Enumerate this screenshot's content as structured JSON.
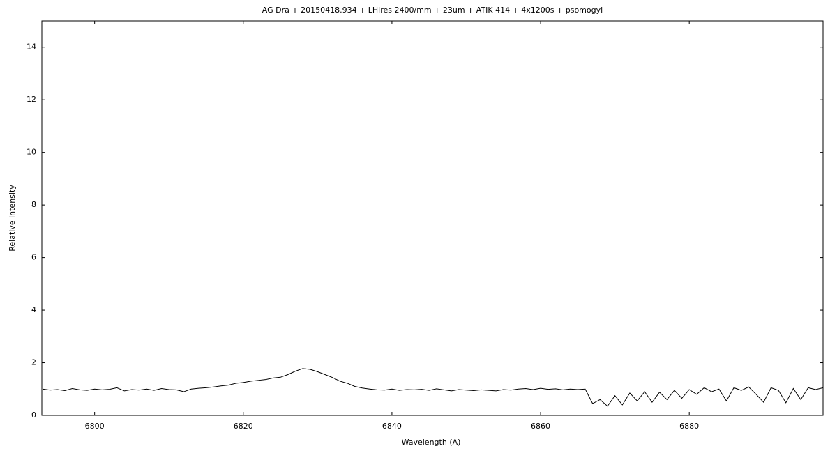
{
  "chart_data": {
    "type": "line",
    "title": "AG Dra + 20150418.934 + LHires 2400/mm + 23um + ATIK 414 + 4x1200s + psomogyi",
    "x_label": "Wavelength (A)",
    "y_label": "Relative intensity",
    "xlim": [
      6792.9,
      6898
    ],
    "ylim": [
      0,
      15
    ],
    "xticks": [
      6800,
      6820,
      6840,
      6860,
      6880
    ],
    "yticks": [
      0,
      2,
      4,
      6,
      8,
      10,
      12,
      14
    ],
    "x": [
      6793,
      6794,
      6795,
      6796,
      6797,
      6798,
      6799,
      6800,
      6801,
      6802,
      6803,
      6804,
      6805,
      6806,
      6807,
      6808,
      6809,
      6810,
      6811,
      6812,
      6813,
      6814,
      6815,
      6816,
      6817,
      6818,
      6819,
      6820,
      6821,
      6822,
      6823,
      6824,
      6825,
      6826,
      6827,
      6828,
      6829,
      6830,
      6831,
      6832,
      6833,
      6834,
      6835,
      6836,
      6837,
      6838,
      6839,
      6840,
      6841,
      6842,
      6843,
      6844,
      6845,
      6846,
      6847,
      6848,
      6849,
      6850,
      6851,
      6852,
      6853,
      6854,
      6855,
      6856,
      6857,
      6858,
      6859,
      6860,
      6861,
      6862,
      6863,
      6864,
      6865,
      6866,
      6867,
      6868,
      6869,
      6870,
      6871,
      6872,
      6873,
      6874,
      6875,
      6876,
      6877,
      6878,
      6879,
      6880,
      6881,
      6882,
      6883,
      6884,
      6885,
      6886,
      6887,
      6888,
      6889,
      6890,
      6891,
      6892,
      6893,
      6894,
      6895,
      6896,
      6897,
      6898
    ],
    "series": [
      {
        "color": "#000000",
        "values": [
          1.0,
          0.96,
          0.98,
          0.94,
          1.02,
          0.97,
          0.95,
          1.0,
          0.97,
          0.99,
          1.05,
          0.93,
          0.98,
          0.96,
          1.0,
          0.95,
          1.02,
          0.98,
          0.97,
          0.9,
          1.0,
          1.03,
          1.05,
          1.08,
          1.12,
          1.15,
          1.22,
          1.25,
          1.3,
          1.33,
          1.36,
          1.42,
          1.45,
          1.55,
          1.68,
          1.78,
          1.75,
          1.66,
          1.55,
          1.44,
          1.3,
          1.22,
          1.1,
          1.04,
          1.0,
          0.97,
          0.96,
          1.0,
          0.95,
          0.98,
          0.97,
          0.99,
          0.95,
          1.01,
          0.97,
          0.93,
          0.98,
          0.96,
          0.94,
          0.97,
          0.95,
          0.93,
          0.98,
          0.96,
          1.0,
          1.02,
          0.98,
          1.03,
          0.99,
          1.01,
          0.97,
          1.0,
          0.98,
          1.0,
          0.45,
          0.6,
          0.35,
          0.75,
          0.4,
          0.85,
          0.55,
          0.9,
          0.5,
          0.88,
          0.6,
          0.95,
          0.65,
          0.98,
          0.8,
          1.05,
          0.9,
          1.0,
          0.55,
          1.05,
          0.95,
          1.08,
          0.8,
          0.5,
          1.05,
          0.95,
          0.48,
          1.02,
          0.6,
          1.05,
          0.98,
          1.05
        ]
      }
    ]
  }
}
